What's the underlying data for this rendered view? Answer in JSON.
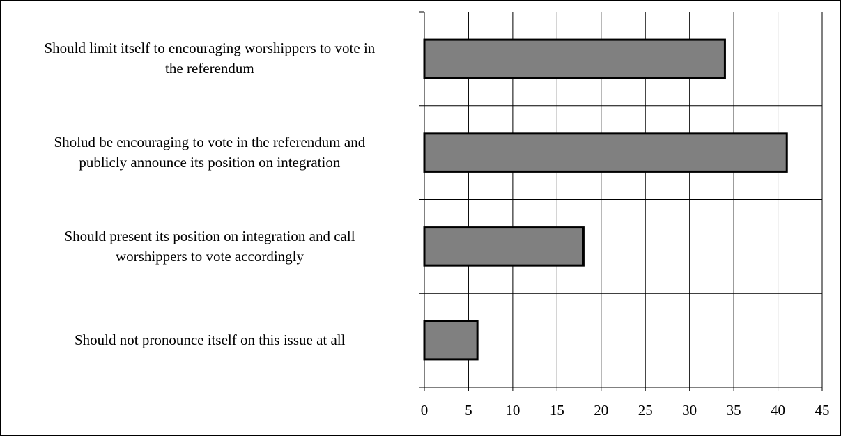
{
  "chart_data": {
    "type": "bar",
    "orientation": "horizontal",
    "title": "",
    "xlabel": "",
    "ylabel": "",
    "categories": [
      [
        "Should limit itself to encouraging worshippers to vote in",
        "the referendum"
      ],
      [
        "Sholud be encouraging to vote in the referendum and",
        "publicly announce its position on integration"
      ],
      [
        "Should present its position on integration and call",
        "worshippers to vote accordingly"
      ],
      [
        "Should not pronounce itself on this issue at all"
      ]
    ],
    "values": [
      34,
      41,
      18,
      6
    ],
    "xlim": [
      0,
      45
    ],
    "xticks": [
      "0",
      "5",
      "10",
      "15",
      "20",
      "25",
      "30",
      "35",
      "40",
      "45"
    ],
    "grid": "vertical",
    "legend": "none",
    "bar_color": "#808080",
    "bar_edge_color": "#000000"
  }
}
